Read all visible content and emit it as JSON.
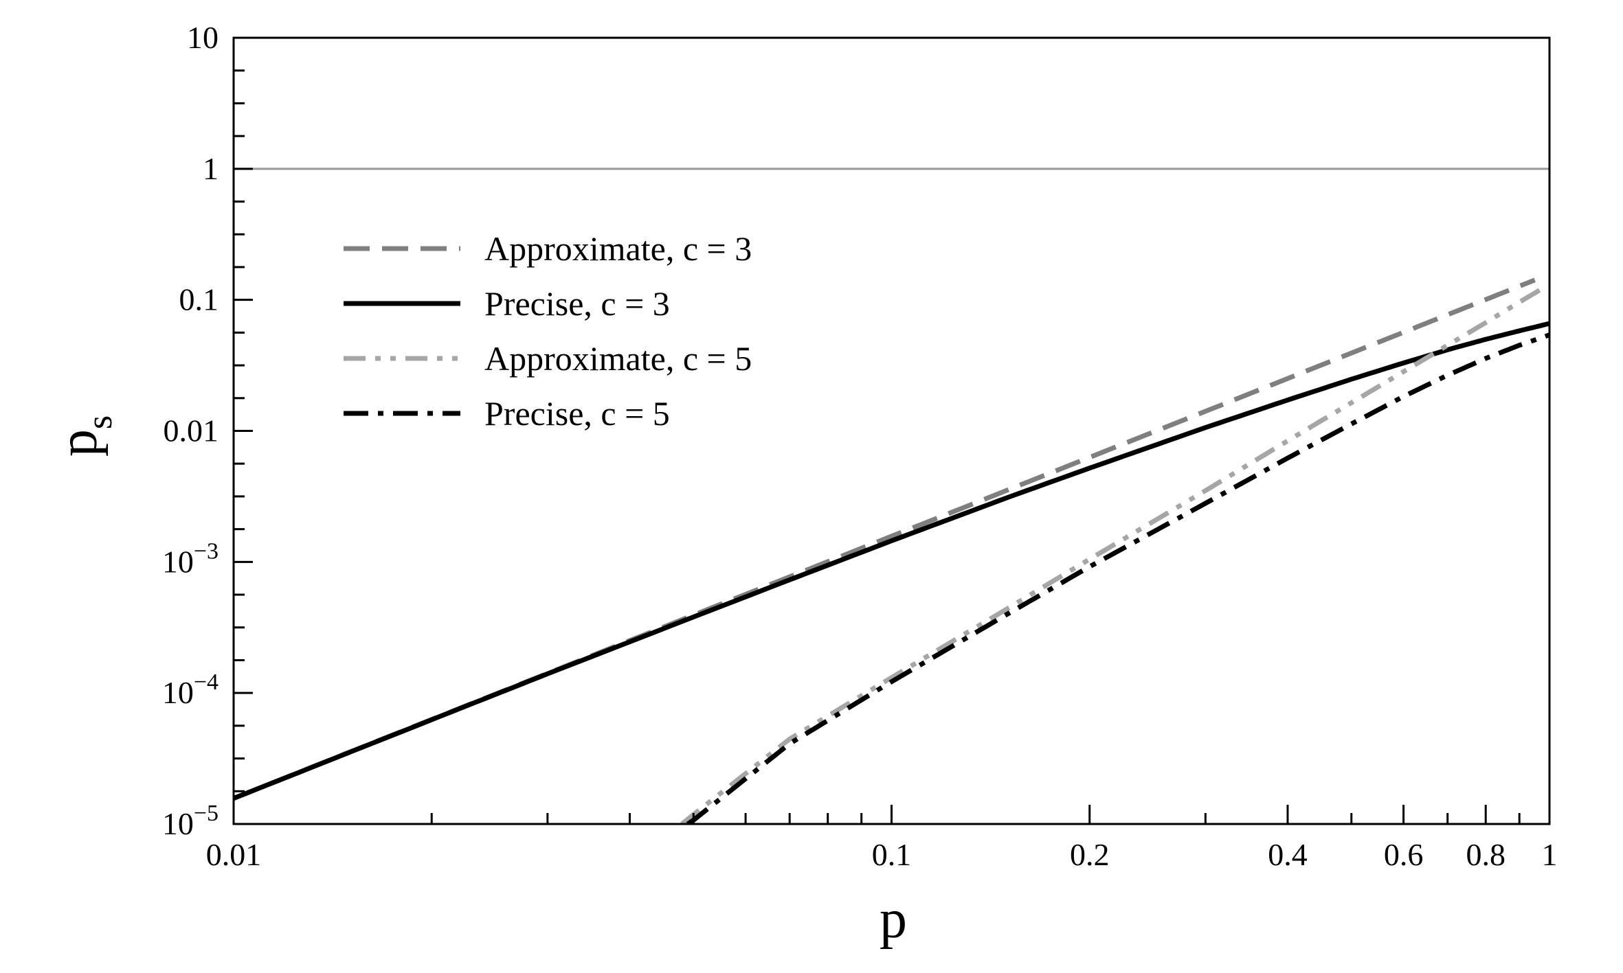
{
  "chart_data": {
    "type": "line",
    "xlabel": "p",
    "ylabel": "p",
    "ylabel_subscript": "s",
    "x_scale": "log",
    "y_scale": "log",
    "xlim": [
      0.01,
      1
    ],
    "ylim": [
      1e-05,
      10
    ],
    "x_ticks": [
      {
        "value": 0.01,
        "label": "0.01"
      },
      {
        "value": 0.1,
        "label": "0.1"
      },
      {
        "value": 0.2,
        "label": "0.2"
      },
      {
        "value": 0.4,
        "label": "0.4"
      },
      {
        "value": 0.6,
        "label": "0.6"
      },
      {
        "value": 0.8,
        "label": "0.8"
      },
      {
        "value": 1,
        "label": "1"
      }
    ],
    "y_ticks": [
      {
        "value": 1e-05,
        "base": "10",
        "exp": "−5",
        "label": ""
      },
      {
        "value": 0.0001,
        "base": "10",
        "exp": "−4",
        "label": ""
      },
      {
        "value": 0.001,
        "base": "10",
        "exp": "−3",
        "label": ""
      },
      {
        "value": 0.01,
        "label": "0.01"
      },
      {
        "value": 0.1,
        "label": "0.1"
      },
      {
        "value": 1,
        "label": "1"
      },
      {
        "value": 10,
        "label": "10"
      }
    ],
    "reference_line": {
      "y": 1,
      "color": "#999999"
    },
    "legend_position": "upper-left",
    "series": [
      {
        "name": "Approximate, c = 3",
        "style": "dashed",
        "color": "#7f7f7f",
        "x": [
          0.01,
          0.02,
          0.03,
          0.05,
          0.07,
          0.1,
          0.15,
          0.2,
          0.3,
          0.4,
          0.5,
          0.6,
          0.7,
          0.8,
          0.9,
          0.95
        ],
        "y": [
          1.57e-05,
          6.28e-05,
          0.000141,
          0.000393,
          0.00077,
          0.00157,
          0.00353,
          0.00628,
          0.0141,
          0.0251,
          0.0393,
          0.0565,
          0.077,
          0.1005,
          0.1272,
          0.1417
        ]
      },
      {
        "name": "Precise, c = 3",
        "style": "solid",
        "color": "#000000",
        "x": [
          0.01,
          0.02,
          0.03,
          0.05,
          0.07,
          0.1,
          0.15,
          0.2,
          0.3,
          0.4,
          0.5,
          0.6,
          0.7,
          0.8,
          0.9,
          1
        ],
        "y": [
          1.57e-05,
          6.25e-05,
          0.00014,
          0.00038,
          0.00073,
          0.00145,
          0.0031,
          0.0052,
          0.0106,
          0.0172,
          0.0248,
          0.033,
          0.0416,
          0.05,
          0.058,
          0.066
        ]
      },
      {
        "name": "Approximate, c = 5",
        "style": "dash-dot-dot",
        "color": "#a6a6a6",
        "x": [
          0.048,
          0.05,
          0.07,
          0.1,
          0.15,
          0.2,
          0.3,
          0.4,
          0.5,
          0.6,
          0.7,
          0.8,
          0.9,
          0.97
        ],
        "y": [
          1e-05,
          1.18e-05,
          4.45e-05,
          0.000131,
          0.00044,
          0.00105,
          0.0035,
          0.0084,
          0.0164,
          0.0283,
          0.045,
          0.067,
          0.096,
          0.12
        ]
      },
      {
        "name": "Precise, c = 5",
        "style": "dash-dot",
        "color": "#000000",
        "x": [
          0.049,
          0.05,
          0.07,
          0.1,
          0.15,
          0.2,
          0.3,
          0.4,
          0.5,
          0.6,
          0.7,
          0.8,
          0.9,
          1
        ],
        "y": [
          1e-05,
          1.07e-05,
          4.1e-05,
          0.000122,
          0.0004,
          0.00092,
          0.0028,
          0.0062,
          0.0113,
          0.0183,
          0.0266,
          0.0357,
          0.045,
          0.054
        ]
      }
    ]
  }
}
